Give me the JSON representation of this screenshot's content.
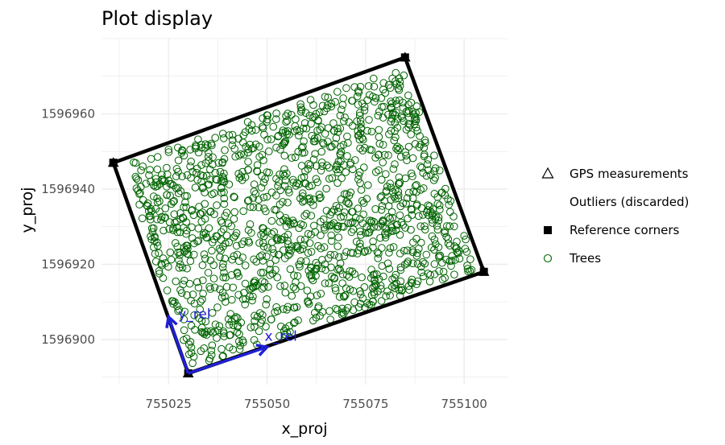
{
  "chart_data": {
    "type": "scatter",
    "title": "Plot display",
    "xlabel": "x_proj",
    "ylabel": "y_proj",
    "xlim": [
      755008,
      755111
    ],
    "ylim": [
      1596888,
      1596980
    ],
    "x_ticks": [
      755025,
      755050,
      755075,
      755100
    ],
    "y_ticks": [
      1596900,
      1596920,
      1596940,
      1596960
    ],
    "x_tick_labels": [
      "755025",
      "755050",
      "755075",
      "755100"
    ],
    "y_tick_labels": [
      "1596900",
      "1596920",
      "1596940",
      "1596960"
    ],
    "grid": true,
    "legend": {
      "position": "right",
      "entries": [
        {
          "label": "GPS measurements",
          "symbol": "open-triangle"
        },
        {
          "label": "Outliers (discarded)",
          "symbol": "none"
        },
        {
          "label": "Reference corners",
          "symbol": "filled-square"
        },
        {
          "label": "Trees",
          "symbol": "open-circle"
        }
      ]
    },
    "plot_boundary": {
      "corners": [
        {
          "x": 755030,
          "y": 1596891
        },
        {
          "x": 755011,
          "y": 1596947
        },
        {
          "x": 755085,
          "y": 1596975
        },
        {
          "x": 755105,
          "y": 1596918
        }
      ]
    },
    "gps_measurements": [
      {
        "x": 755030,
        "y": 1596891
      },
      {
        "x": 755011,
        "y": 1596947
      },
      {
        "x": 755085,
        "y": 1596975
      },
      {
        "x": 755105,
        "y": 1596918
      }
    ],
    "reference_corners": [
      {
        "x": 755030,
        "y": 1596891
      },
      {
        "x": 755011,
        "y": 1596947
      },
      {
        "x": 755085,
        "y": 1596975
      },
      {
        "x": 755105,
        "y": 1596918
      }
    ],
    "reference_axes": {
      "origin": {
        "x": 755030,
        "y": 1596891
      },
      "x_rel_end": {
        "x": 755050,
        "y": 1596898
      },
      "y_rel_end": {
        "x": 755025,
        "y": 1596906
      },
      "x_label": "x_rel",
      "y_label": "y_rel"
    },
    "trees": {
      "count": 1400,
      "note": ""
    },
    "colors": {
      "trees": "#006400",
      "boundary": "#000000",
      "reference_axes": "#1f1fd6",
      "grid": "#ebebeb"
    }
  }
}
